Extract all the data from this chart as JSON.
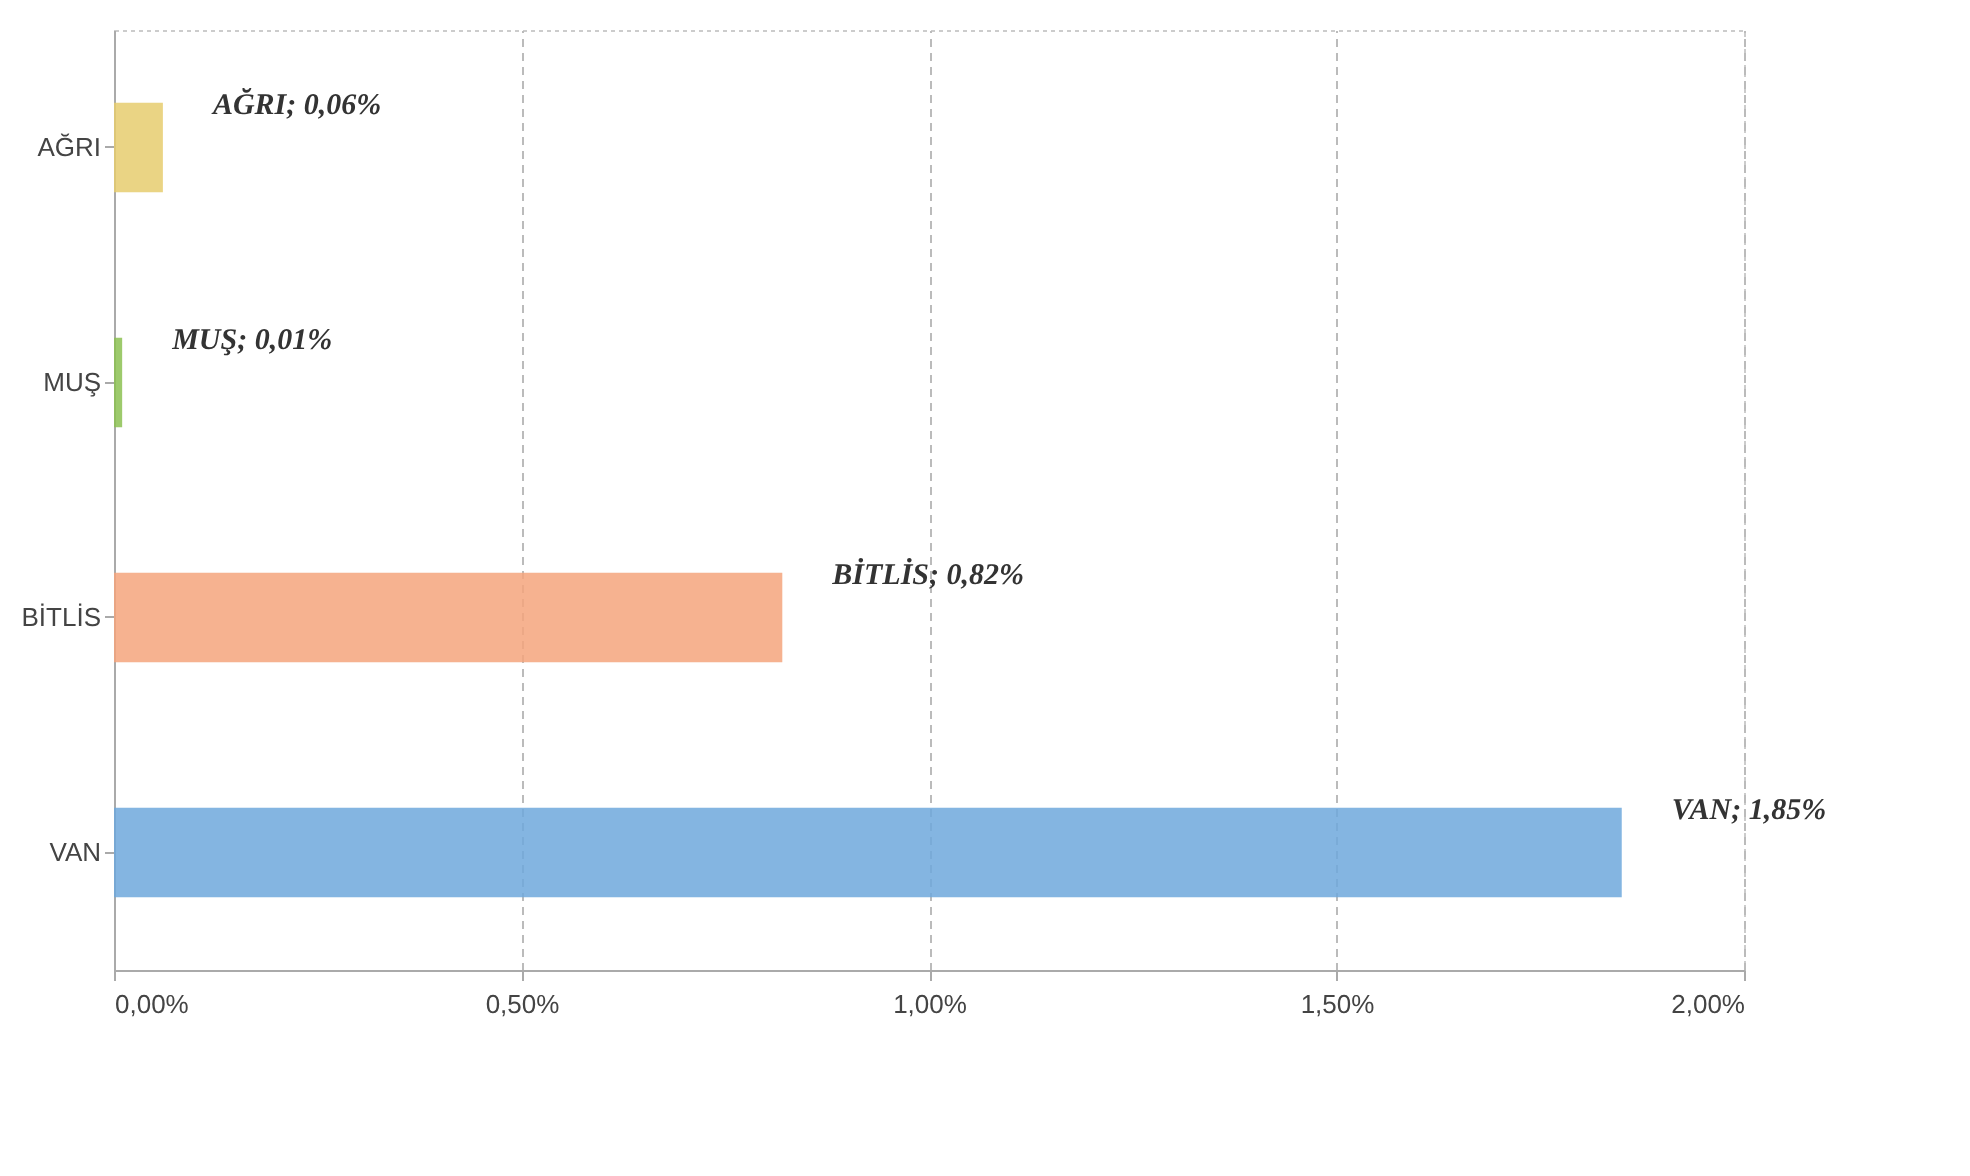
{
  "chart_data": {
    "type": "bar",
    "orientation": "horizontal",
    "categories": [
      "AĞRI",
      "MUŞ",
      "BİTLİS",
      "VAN"
    ],
    "values": [
      0.06,
      0.01,
      0.82,
      1.85
    ],
    "colors": [
      "#e6cc6e",
      "#8cc152",
      "#f4a57c",
      "#6fa8dc"
    ],
    "value_labels": [
      "AĞRI; 0,06%",
      "MUŞ; 0,01%",
      "BİTLİS; 0,82%",
      "VAN; 1,85%"
    ],
    "xlim": [
      0,
      2
    ],
    "xticks": [
      {
        "value": 0,
        "label": "0,00%"
      },
      {
        "value": 0.5,
        "label": "0,50%"
      },
      {
        "value": 1,
        "label": "1,00%"
      },
      {
        "value": 1.5,
        "label": "1,50%"
      },
      {
        "value": 2,
        "label": "2,00%"
      }
    ],
    "grid": "x",
    "legend": false
  }
}
